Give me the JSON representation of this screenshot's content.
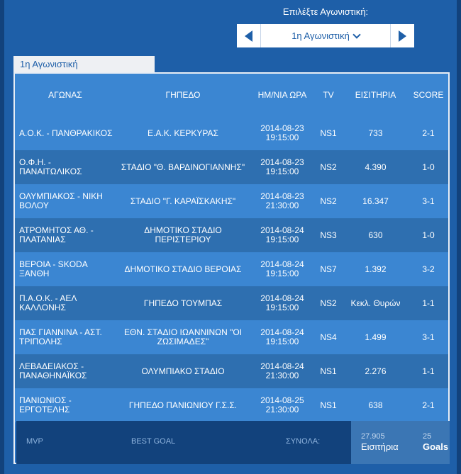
{
  "selector": {
    "label": "Επιλέξτε Αγωνιστική:",
    "current": "1η Αγωνιστική"
  },
  "tab": {
    "label": "1η Αγωνιστική"
  },
  "columns": [
    "ΑΓΩΝΑΣ",
    "ΓΗΠΕΔΟ",
    "ΗΜ/ΝΙΑ ΩΡΑ",
    "TV",
    "ΕΙΣΙΤΗΡΙΑ",
    "SCORE"
  ],
  "rows": [
    {
      "match": "Α.Ο.Κ. - ΠΑΝΘΡΑΚΙΚΟΣ",
      "stadium": "Ε.Α.Κ. ΚΕΡΚΥΡΑΣ",
      "date": "2014-08-23",
      "time": "19:15:00",
      "tv": "NS1",
      "tickets": "733",
      "score": "2-1"
    },
    {
      "match": "Ο.Φ.Η. - ΠΑΝΑΙΤΩΛΙΚΟΣ",
      "stadium": "ΣΤΑΔΙΟ \"Θ. ΒΑΡΔΙΝΟΓΙΑΝΝΗΣ\"",
      "date": "2014-08-23",
      "time": "19:15:00",
      "tv": "NS2",
      "tickets": "4.390",
      "score": "1-0"
    },
    {
      "match": "ΟΛΥΜΠΙΑΚΟΣ - ΝΙΚΗ ΒΟΛΟΥ",
      "stadium": "ΣΤΑΔΙΟ \"Γ. ΚΑΡΑΪΣΚΑΚΗΣ\"",
      "date": "2014-08-23",
      "time": "21:30:00",
      "tv": "NS2",
      "tickets": "16.347",
      "score": "3-1"
    },
    {
      "match": "ΑΤΡΟΜΗΤΟΣ ΑΘ. - ΠΛΑΤΑΝΙΑΣ",
      "stadium": "ΔΗΜΟΤΙΚΟ ΣΤΑΔΙΟ ΠΕΡΙΣΤΕΡΙΟΥ",
      "date": "2014-08-24",
      "time": "19:15:00",
      "tv": "NS3",
      "tickets": "630",
      "score": "1-0"
    },
    {
      "match": "ΒΕΡΟΙΑ - SKODA ΞΑΝΘΗ",
      "stadium": "ΔΗΜΟΤΙΚΟ ΣΤΑΔΙΟ ΒΕΡΟΙΑΣ",
      "date": "2014-08-24",
      "time": "19:15:00",
      "tv": "NS7",
      "tickets": "1.392",
      "score": "3-2"
    },
    {
      "match": "Π.Α.Ο.Κ. - ΑΕΛ ΚΑΛΛΟΝΗΣ",
      "stadium": "ΓΗΠΕΔΟ ΤΟΥΜΠΑΣ",
      "date": "2014-08-24",
      "time": "19:15:00",
      "tv": "NS2",
      "tickets": "Κεκλ. Θυρών",
      "score": "1-1"
    },
    {
      "match": "ΠΑΣ ΓΙΑΝΝΙΝΑ - ΑΣΤ. ΤΡΙΠΟΛΗΣ",
      "stadium": "ΕΘΝ. ΣΤΑΔΙΟ ΙΩΑΝΝΙΝΩΝ \"ΟΙ ΖΩΣΙΜΑΔΕΣ\"",
      "date": "2014-08-24",
      "time": "19:15:00",
      "tv": "NS4",
      "tickets": "1.499",
      "score": "3-1"
    },
    {
      "match": "ΛΕΒΑΔΕΙΑΚΟΣ - ΠΑΝΑΘΗΝΑΪΚΟΣ",
      "stadium": "ΟΛΥΜΠΙΑΚΟ ΣΤΑΔΙΟ",
      "date": "2014-08-24",
      "time": "21:30:00",
      "tv": "NS1",
      "tickets": "2.276",
      "score": "1-1"
    },
    {
      "match": "ΠΑΝΙΩΝΙΟΣ - ΕΡΓΟΤΕΛΗΣ",
      "stadium": "ΓΗΠΕΔΟ ΠΑΝΙΩΝΙΟΥ Γ.Σ.Σ.",
      "date": "2014-08-25",
      "time": "21:30:00",
      "tv": "NS1",
      "tickets": "638",
      "score": "2-1"
    }
  ],
  "footer": {
    "mvp_label": "MVP",
    "best_goal_label": "BEST GOAL",
    "totals_label": "ΣΥΝΟΛΑ:",
    "tickets_total": "27.905",
    "tickets_label": "Εισιτήρια",
    "goals_total": "25",
    "goals_label": "Goals"
  }
}
